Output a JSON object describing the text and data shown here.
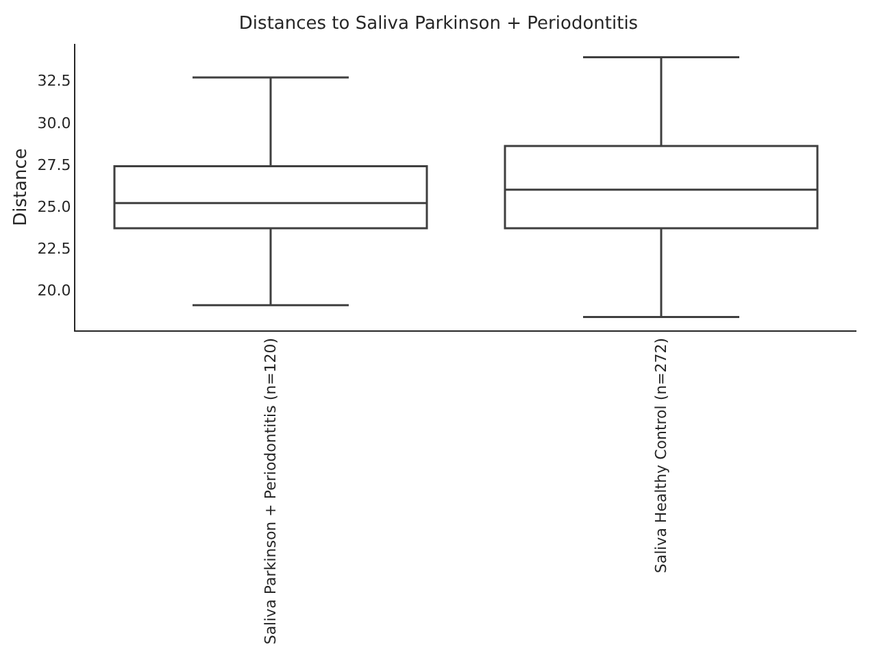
{
  "chart_data": {
    "type": "box",
    "title": "Distances to Saliva Parkinson + Periodontitis",
    "ylabel": "Distance",
    "categories": [
      "Saliva Parkinson + Periodontitis (n=120)",
      "Saliva Healthy Control (n=272)"
    ],
    "boxes": [
      {
        "low": 19.1,
        "q1": 23.7,
        "median": 25.2,
        "q3": 27.4,
        "high": 32.7
      },
      {
        "low": 18.4,
        "q1": 23.7,
        "median": 26.0,
        "q3": 28.6,
        "high": 33.9
      }
    ],
    "color": "#3f3f3f",
    "ylim": [
      17.6,
      34.7
    ],
    "yticks": [
      {
        "value": 20,
        "label": "20.0"
      },
      22.5,
      {
        "value": 25,
        "label": "25.0"
      },
      27.5,
      {
        "value": 30,
        "label": "30.0"
      },
      32.5
    ],
    "grid": false
  }
}
